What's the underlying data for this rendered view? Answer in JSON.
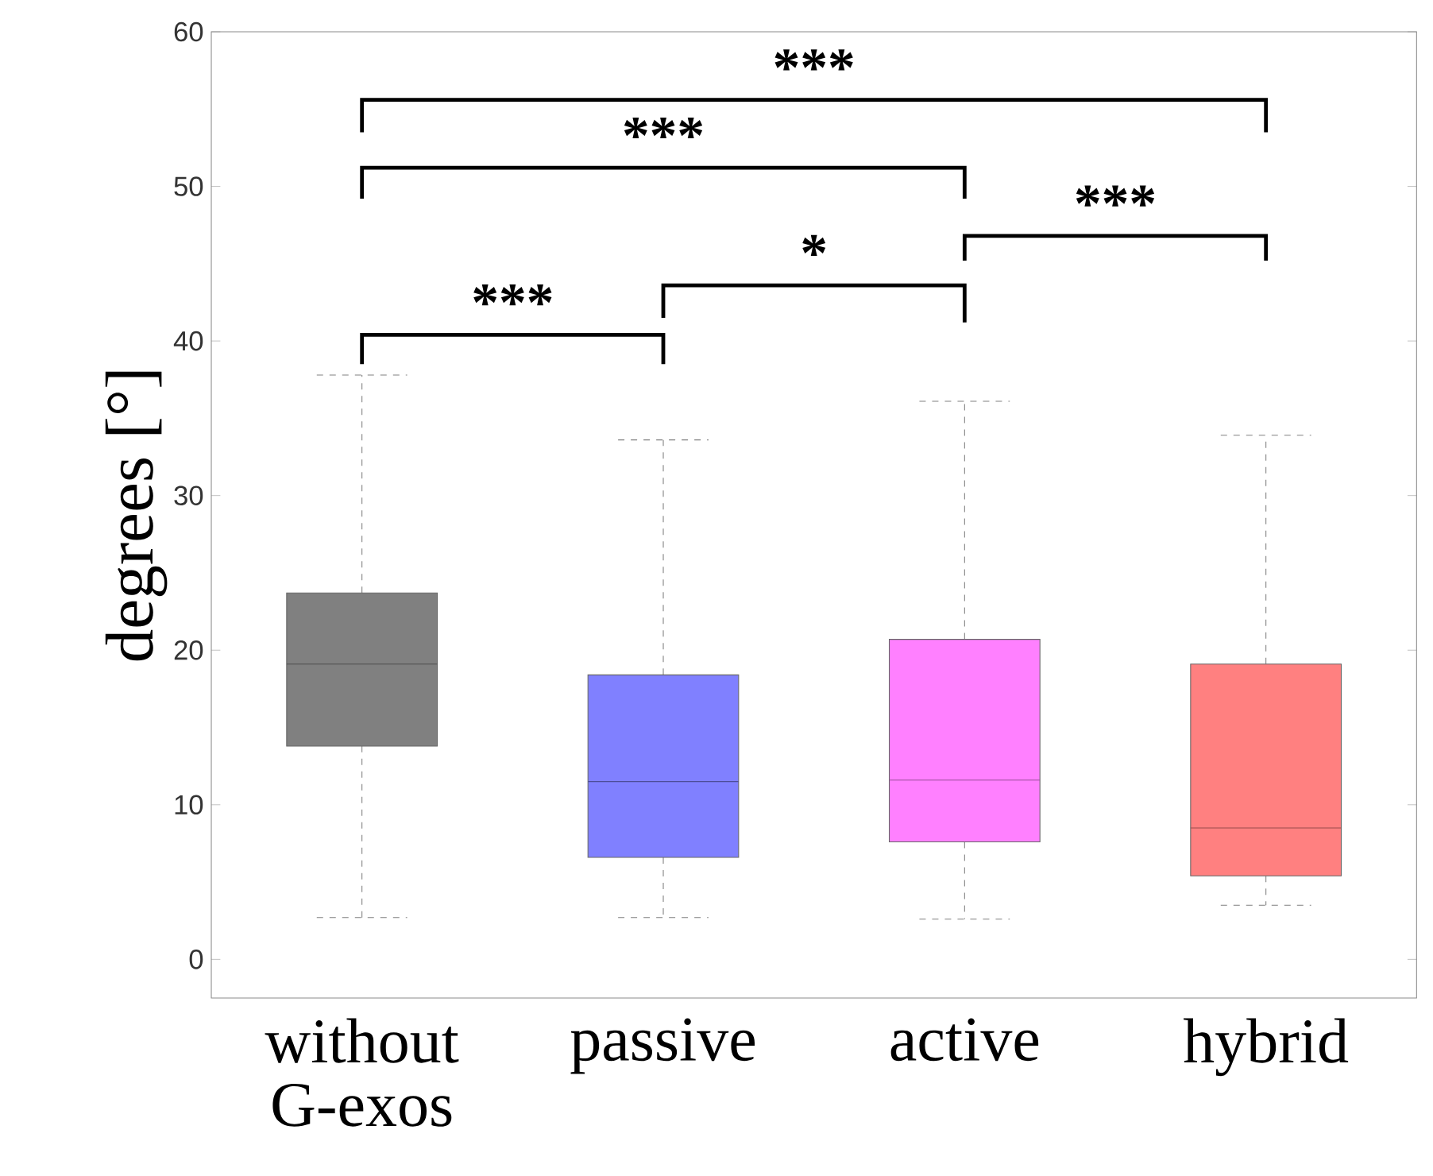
{
  "chart_data": {
    "type": "box",
    "ylabel": "degrees [°]",
    "categories": [
      "without G-exos",
      "passive",
      "active",
      "hybrid"
    ],
    "boxes": [
      {
        "low": 2.7,
        "q1": 13.8,
        "median": 19.1,
        "q3": 23.7,
        "high": 37.8
      },
      {
        "low": 2.7,
        "q1": 6.6,
        "median": 11.5,
        "q3": 18.4,
        "high": 33.6
      },
      {
        "low": 2.6,
        "q1": 7.6,
        "median": 11.6,
        "q3": 20.7,
        "high": 36.1
      },
      {
        "low": 3.5,
        "q1": 5.4,
        "median": 8.5,
        "q3": 19.1,
        "high": 33.9
      }
    ],
    "colors": [
      "#808080",
      "#8080ff",
      "#ff80ff",
      "#ff8080"
    ],
    "ylim": [
      -2.5,
      60
    ],
    "yticks": [
      0,
      10,
      20,
      30,
      40,
      50,
      60
    ],
    "annotations": [
      "***",
      "*",
      "***",
      "***",
      "***"
    ]
  }
}
